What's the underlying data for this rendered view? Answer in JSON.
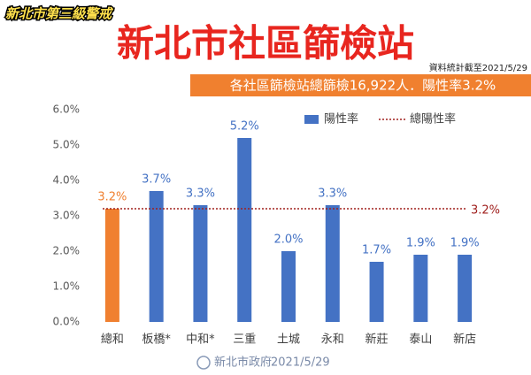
{
  "chart_data": {
    "type": "bar",
    "badge": "新北市第三級警戒",
    "title": "新北市社區篩檢站",
    "note": "資料統計截至2021/5/29",
    "subtitle": "各社區篩檢站總篩檢16,922人．陽性率3.2%",
    "categories": [
      "總和",
      "板橋*",
      "中和*",
      "三重",
      "土城",
      "永和",
      "新莊",
      "泰山",
      "新店"
    ],
    "series": [
      {
        "name": "陽性率",
        "color": "#4472c4",
        "colors": [
          "#f08030",
          "#4472c4",
          "#4472c4",
          "#4472c4",
          "#4472c4",
          "#4472c4",
          "#4472c4",
          "#4472c4",
          "#4472c4"
        ],
        "values": [
          3.2,
          3.7,
          3.3,
          5.2,
          2.0,
          3.3,
          1.7,
          1.9,
          1.9
        ],
        "value_labels": [
          "3.2%",
          "3.7%",
          "3.3%",
          "5.2%",
          "2.0%",
          "3.3%",
          "1.7%",
          "1.9%",
          "1.9%"
        ]
      }
    ],
    "reference_line": {
      "name": "總陽性率",
      "value": 3.2,
      "label": "3.2%",
      "color": "#a0201e"
    },
    "ylim": [
      0,
      6
    ],
    "yticks": [
      {
        "value": 0,
        "label": "0.0%"
      },
      {
        "value": 1,
        "label": "1.0%"
      },
      {
        "value": 2,
        "label": "2.0%"
      },
      {
        "value": 3,
        "label": "3.0%"
      },
      {
        "value": 4,
        "label": "4.0%"
      },
      {
        "value": 5,
        "label": "5.0%"
      },
      {
        "value": 6,
        "label": "6.0%"
      }
    ],
    "grid": false,
    "footer": {
      "org": "新北市政府",
      "date": "2021/5/29"
    }
  }
}
